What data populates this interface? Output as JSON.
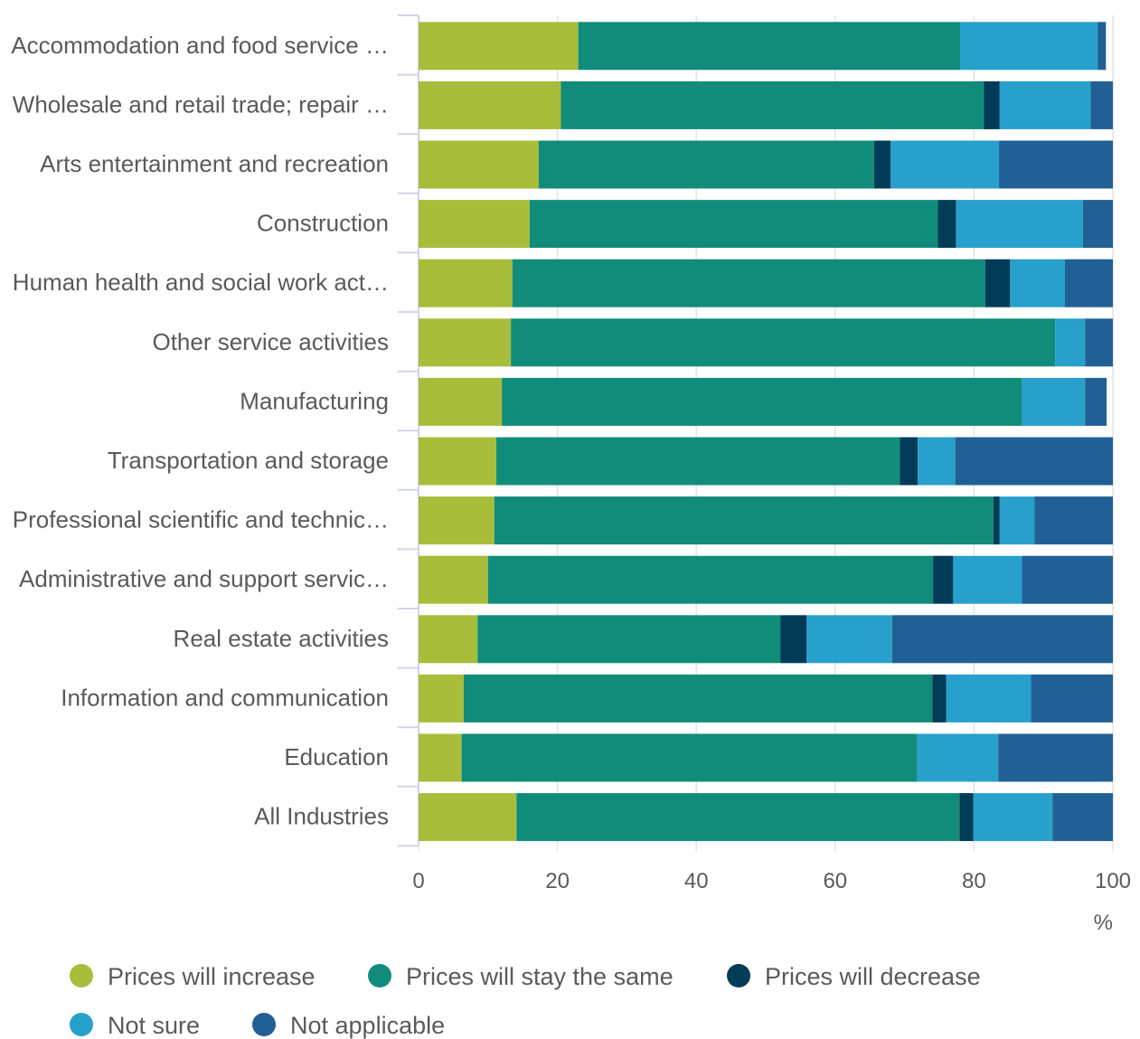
{
  "chart_data": {
    "type": "bar",
    "orientation": "horizontal",
    "stacked": true,
    "title": "",
    "xlabel": "",
    "ylabel": "",
    "unit": "%",
    "xlim": [
      0,
      100
    ],
    "xticks": [
      0,
      20,
      40,
      60,
      80,
      100
    ],
    "grid": true,
    "legend_position": "bottom",
    "categories": [
      "Accommodation and food service …",
      "Wholesale and retail trade; repair …",
      "Arts entertainment and recreation",
      "Construction",
      "Human health and social work act…",
      "Other service activities",
      "Manufacturing",
      "Transportation and storage",
      "Professional scientific and technic…",
      "Administrative and support servic…",
      "Real estate activities",
      "Information and communication",
      "Education",
      "All Industries"
    ],
    "series": [
      {
        "name": "Prices will increase",
        "color": "#a8bd3a",
        "values": [
          23.0,
          20.5,
          17.3,
          16.0,
          13.5,
          13.3,
          12.0,
          11.2,
          10.9,
          10.0,
          8.5,
          6.5,
          6.2,
          14.1
        ]
      },
      {
        "name": "Prices will stay the same",
        "color": "#118c7b",
        "values": [
          55.0,
          60.9,
          48.3,
          58.8,
          68.1,
          78.4,
          74.9,
          58.1,
          71.9,
          64.1,
          43.6,
          67.5,
          65.6,
          63.8
        ]
      },
      {
        "name": "Prices will decrease",
        "color": "#003c57",
        "values": [
          0.0,
          2.3,
          2.4,
          2.6,
          3.6,
          0.0,
          0.0,
          2.6,
          0.9,
          2.9,
          3.8,
          2.0,
          0.0,
          2.0
        ]
      },
      {
        "name": "Not sure",
        "color": "#27a0cc",
        "values": [
          19.8,
          13.1,
          15.6,
          18.3,
          7.9,
          4.3,
          9.1,
          5.4,
          5.0,
          9.9,
          12.3,
          12.2,
          11.7,
          11.4
        ]
      },
      {
        "name": "Not applicable",
        "color": "#206095",
        "values": [
          1.2,
          3.2,
          16.4,
          4.3,
          6.9,
          4.0,
          3.1,
          22.7,
          11.3,
          13.1,
          31.8,
          11.8,
          16.5,
          8.7
        ]
      }
    ]
  }
}
